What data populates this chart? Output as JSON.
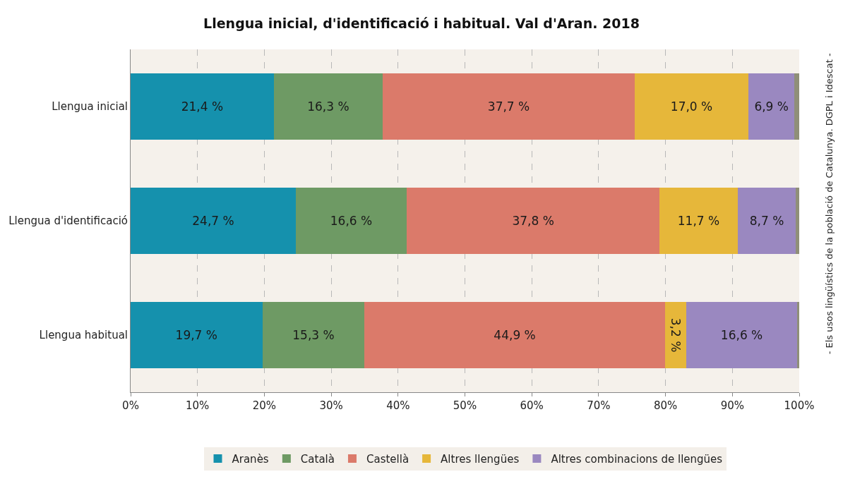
{
  "chart_data": {
    "type": "bar",
    "orientation": "horizontal",
    "stacked": true,
    "title": "Llengua inicial, d'identificació i habitual. Val d'Aran. 2018",
    "categories": [
      "Llengua inicial",
      "Llengua d'identificació",
      "Llengua habitual"
    ],
    "series": [
      {
        "name": "Aranès",
        "color": "#1591ad",
        "values": [
          21.4,
          24.7,
          19.7
        ],
        "value_labels": [
          "21,4 %",
          "24,7 %",
          "19,7 %"
        ]
      },
      {
        "name": "Català",
        "color": "#6e9a64",
        "values": [
          16.3,
          16.6,
          15.3
        ],
        "value_labels": [
          "16,3 %",
          "16,6 %",
          "15,3 %"
        ]
      },
      {
        "name": "Castellà",
        "color": "#db7a6a",
        "values": [
          37.7,
          37.8,
          44.9
        ],
        "value_labels": [
          "37,7 %",
          "37,8 %",
          "44,9 %"
        ]
      },
      {
        "name": "Altres llengües",
        "color": "#e6b73a",
        "values": [
          17.0,
          11.7,
          3.2
        ],
        "value_labels": [
          "17,0 %",
          "11,7 %",
          "3,2 %"
        ]
      },
      {
        "name": "Altres combinacions de llengües",
        "color": "#9a88c0",
        "values": [
          6.9,
          8.7,
          16.6
        ],
        "value_labels": [
          "6,9 %",
          "8,7 %",
          "16,6 %"
        ]
      },
      {
        "color": "#8f8f78",
        "values": [
          0.7,
          0.5,
          0.3
        ]
      }
    ],
    "xlim": [
      0,
      100
    ],
    "xticks": [
      {
        "value": 0,
        "label": "0%"
      },
      {
        "value": 10,
        "label": "10%"
      },
      {
        "value": 20,
        "label": "20%"
      },
      {
        "value": 30,
        "label": "30%"
      },
      {
        "value": 40,
        "label": "40%"
      },
      {
        "value": 50,
        "label": "50%"
      },
      {
        "value": 60,
        "label": "60%"
      },
      {
        "value": 70,
        "label": "70%"
      },
      {
        "value": 80,
        "label": "80%"
      },
      {
        "value": 90,
        "label": "90%"
      },
      {
        "value": 100,
        "label": "100%"
      }
    ],
    "grid": "x",
    "legend": "bottom",
    "annotations": [
      "- Els usos lingüístics de la població de Catalunya. DGPL i Idescat -"
    ]
  }
}
